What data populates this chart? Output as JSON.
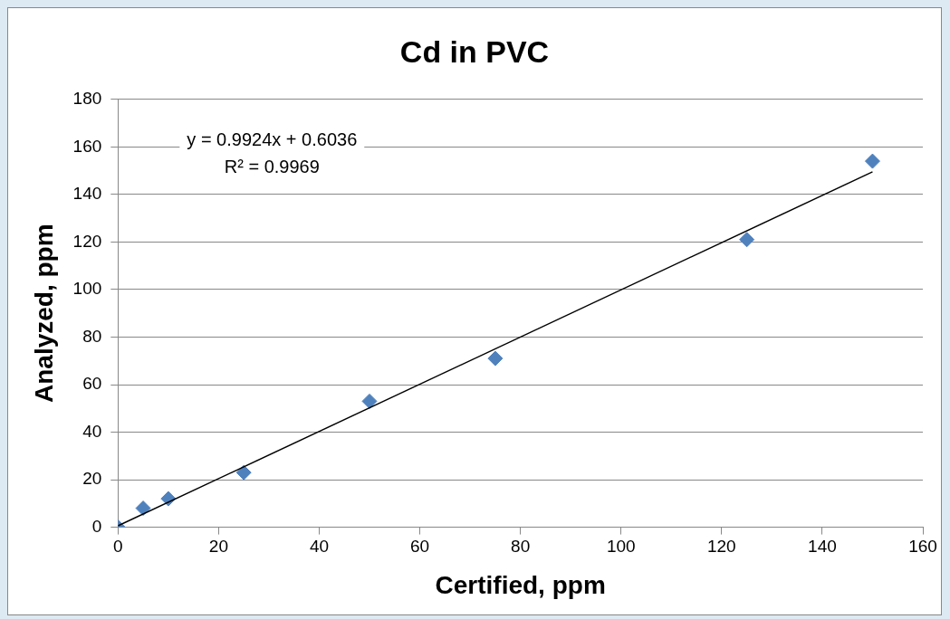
{
  "chart_data": {
    "type": "scatter",
    "title": "Cd in PVC",
    "xlabel": "Certified, ppm",
    "ylabel": "Analyzed, ppm",
    "x": [
      0,
      5,
      10,
      25,
      50,
      75,
      125,
      150
    ],
    "series": [
      {
        "type": "scatter",
        "color": "#4f81bd",
        "marker": "diamond",
        "values": [
          0,
          8,
          12,
          23,
          53,
          71,
          121,
          154
        ]
      },
      {
        "type": "line",
        "color": "#000000",
        "marker": "none",
        "x": [
          0,
          150
        ],
        "values": [
          0.6,
          149.5
        ]
      }
    ],
    "xlim": [
      0,
      160
    ],
    "xticks": [
      0,
      20,
      40,
      60,
      80,
      100,
      120,
      140,
      160
    ],
    "ylim": [
      0,
      180
    ],
    "yticks": [
      0,
      20,
      40,
      60,
      80,
      100,
      120,
      140,
      160,
      180
    ],
    "grid": "y",
    "legend": false,
    "annotations": [
      "y = 0.9924x + 0.6036",
      "R² = 0.9969"
    ]
  }
}
